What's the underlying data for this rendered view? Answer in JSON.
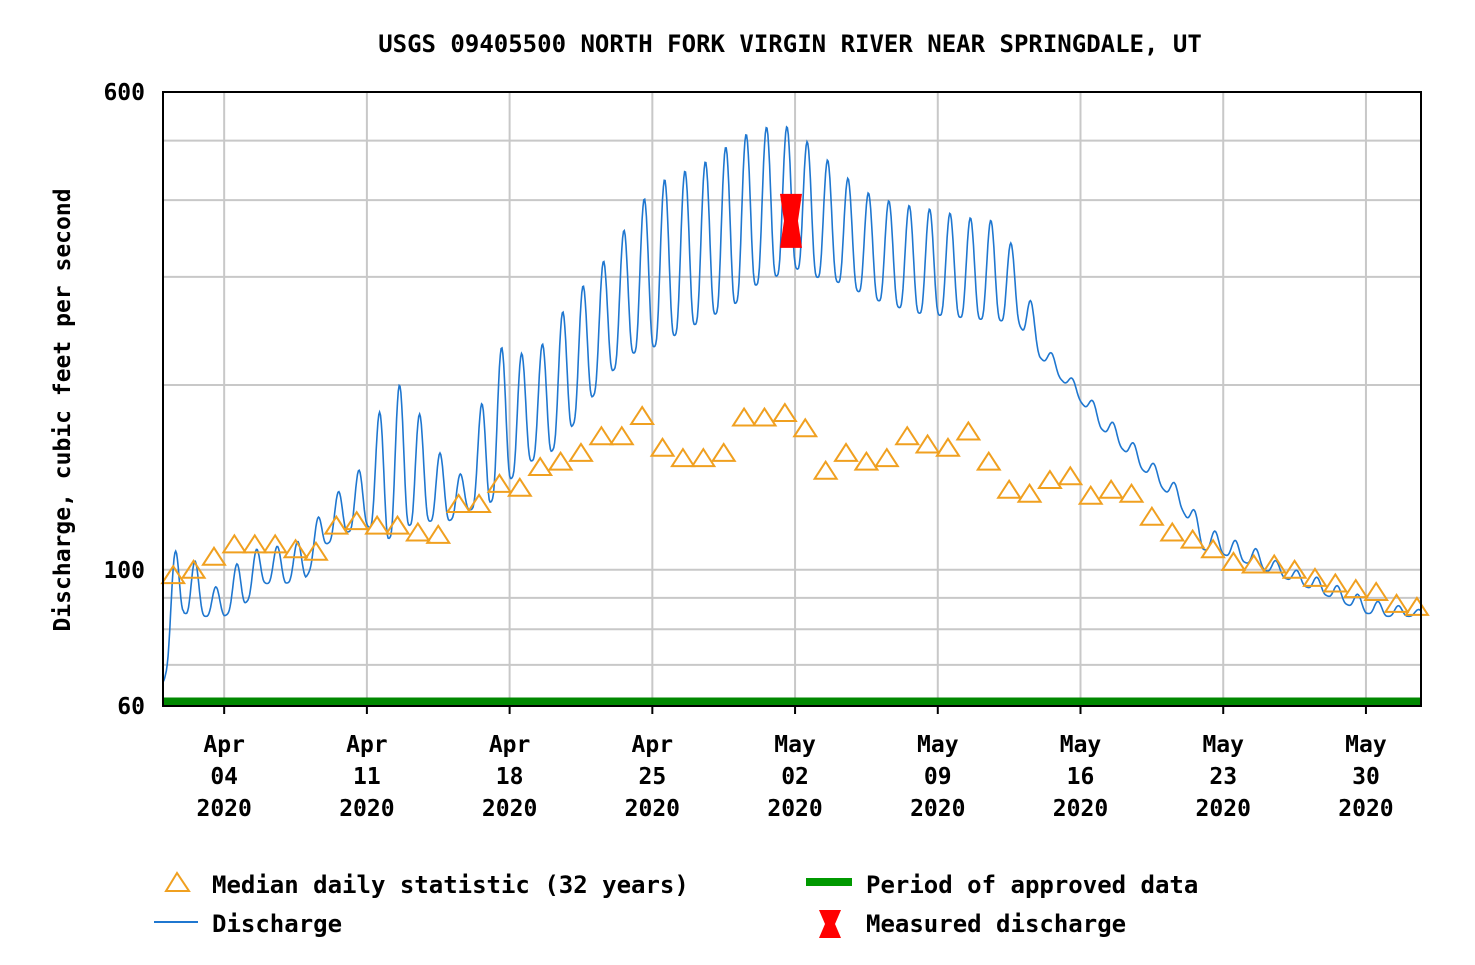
{
  "chart_data": {
    "type": "line",
    "title": "USGS 09405500 NORTH FORK VIRGIN RIVER NEAR SPRINGDALE, UT",
    "ylabel": "Discharge, cubic feet per second",
    "xlabel": "",
    "yscale": "log",
    "ylim": [
      60,
      600
    ],
    "xlim_days": [
      0,
      61.7
    ],
    "y_tick_labels": [
      {
        "value": 600,
        "label": "600"
      },
      {
        "value": 100,
        "label": "100"
      },
      {
        "value": 60,
        "label": "60"
      }
    ],
    "y_gridlines": [
      70,
      80,
      90,
      100,
      200,
      300,
      400,
      500,
      600
    ],
    "x_tick_labels": [
      {
        "day": 3,
        "month": "Apr",
        "date": "04",
        "year": "2020"
      },
      {
        "day": 10,
        "month": "Apr",
        "date": "11",
        "year": "2020"
      },
      {
        "day": 17,
        "month": "Apr",
        "date": "18",
        "year": "2020"
      },
      {
        "day": 24,
        "month": "Apr",
        "date": "25",
        "year": "2020"
      },
      {
        "day": 31,
        "month": "May",
        "date": "02",
        "year": "2020"
      },
      {
        "day": 38,
        "month": "May",
        "date": "09",
        "year": "2020"
      },
      {
        "day": 45,
        "month": "May",
        "date": "16",
        "year": "2020"
      },
      {
        "day": 52,
        "month": "May",
        "date": "23",
        "year": "2020"
      },
      {
        "day": 59,
        "month": "May",
        "date": "30",
        "year": "2020"
      }
    ],
    "series": [
      {
        "name": "Discharge",
        "type": "line",
        "color": "#1f77d0",
        "daily_points": [
          {
            "day": 0,
            "low": 65,
            "high": 95
          },
          {
            "day": 1,
            "low": 85,
            "high": 115
          },
          {
            "day": 2,
            "low": 84,
            "high": 95
          },
          {
            "day": 3,
            "low": 84,
            "high": 93
          },
          {
            "day": 4,
            "low": 88,
            "high": 108
          },
          {
            "day": 5,
            "low": 95,
            "high": 108
          },
          {
            "day": 6,
            "low": 95,
            "high": 110
          },
          {
            "day": 7,
            "low": 97,
            "high": 112
          },
          {
            "day": 8,
            "low": 110,
            "high": 128
          },
          {
            "day": 9,
            "low": 115,
            "high": 138
          },
          {
            "day": 10,
            "low": 118,
            "high": 150
          },
          {
            "day": 11,
            "low": 112,
            "high": 200
          },
          {
            "day": 12,
            "low": 118,
            "high": 200
          },
          {
            "day": 13,
            "low": 120,
            "high": 165
          },
          {
            "day": 14,
            "low": 120,
            "high": 148
          },
          {
            "day": 15,
            "low": 125,
            "high": 140
          },
          {
            "day": 16,
            "low": 128,
            "high": 215
          },
          {
            "day": 17,
            "low": 140,
            "high": 240
          },
          {
            "day": 18,
            "low": 150,
            "high": 215
          },
          {
            "day": 19,
            "low": 155,
            "high": 245
          },
          {
            "day": 20,
            "low": 170,
            "high": 275
          },
          {
            "day": 21,
            "low": 190,
            "high": 300
          },
          {
            "day": 22,
            "low": 210,
            "high": 330
          },
          {
            "day": 23,
            "low": 225,
            "high": 375
          },
          {
            "day": 24,
            "low": 230,
            "high": 420
          },
          {
            "day": 25,
            "low": 240,
            "high": 440
          },
          {
            "day": 26,
            "low": 250,
            "high": 450
          },
          {
            "day": 27,
            "low": 260,
            "high": 470
          },
          {
            "day": 28,
            "low": 270,
            "high": 500
          },
          {
            "day": 29,
            "low": 290,
            "high": 520
          },
          {
            "day": 30,
            "low": 300,
            "high": 530
          },
          {
            "day": 31,
            "low": 310,
            "high": 525
          },
          {
            "day": 32,
            "low": 300,
            "high": 480
          },
          {
            "day": 33,
            "low": 295,
            "high": 455
          },
          {
            "day": 34,
            "low": 285,
            "high": 420
          },
          {
            "day": 35,
            "low": 275,
            "high": 405
          },
          {
            "day": 36,
            "low": 268,
            "high": 395
          },
          {
            "day": 37,
            "low": 262,
            "high": 390
          },
          {
            "day": 38,
            "low": 260,
            "high": 385
          },
          {
            "day": 39,
            "low": 258,
            "high": 378
          },
          {
            "day": 40,
            "low": 256,
            "high": 372
          },
          {
            "day": 41,
            "low": 255,
            "high": 370
          },
          {
            "day": 42,
            "low": 250,
            "high": 320
          },
          {
            "day": 43,
            "low": 222,
            "high": 240
          },
          {
            "day": 44,
            "low": 205,
            "high": 215
          },
          {
            "day": 45,
            "low": 188,
            "high": 198
          },
          {
            "day": 46,
            "low": 170,
            "high": 182
          },
          {
            "day": 47,
            "low": 158,
            "high": 168
          },
          {
            "day": 48,
            "low": 146,
            "high": 156
          },
          {
            "day": 49,
            "low": 136,
            "high": 144
          },
          {
            "day": 50,
            "low": 125,
            "high": 135
          },
          {
            "day": 51,
            "low": 108,
            "high": 118
          },
          {
            "day": 52,
            "low": 106,
            "high": 114
          },
          {
            "day": 53,
            "low": 103,
            "high": 110
          },
          {
            "day": 54,
            "low": 100,
            "high": 107
          },
          {
            "day": 55,
            "low": 97,
            "high": 101
          },
          {
            "day": 56,
            "low": 94,
            "high": 99
          },
          {
            "day": 57,
            "low": 91,
            "high": 96
          },
          {
            "day": 58,
            "low": 88,
            "high": 93
          },
          {
            "day": 59,
            "low": 85,
            "high": 90
          },
          {
            "day": 60,
            "low": 84,
            "high": 88
          },
          {
            "day": 61,
            "low": 84,
            "high": 87
          },
          {
            "day": 61.7,
            "low": 84,
            "high": 86
          }
        ]
      },
      {
        "name": "Median daily statistic (32 years)",
        "type": "marker",
        "marker": "triangle-open",
        "color": "#f0a020",
        "x": [
          0,
          1,
          2,
          3,
          4,
          5,
          6,
          7,
          8,
          9,
          10,
          11,
          12,
          13,
          14,
          15,
          16,
          17,
          18,
          19,
          20,
          21,
          22,
          23,
          24,
          25,
          26,
          27,
          28,
          29,
          30,
          31,
          32,
          33,
          34,
          35,
          36,
          37,
          38,
          39,
          40,
          41,
          42,
          43,
          44,
          45,
          46,
          47,
          48,
          49,
          50,
          51,
          52,
          53,
          54,
          55,
          56,
          57,
          58,
          59,
          60,
          61
        ],
        "values": [
          98,
          100,
          105,
          110,
          110,
          110,
          108,
          107,
          118,
          120,
          118,
          118,
          115,
          114,
          128,
          128,
          138,
          136,
          147,
          150,
          155,
          165,
          165,
          178,
          158,
          152,
          152,
          155,
          177,
          177,
          180,
          170,
          145,
          155,
          150,
          152,
          165,
          160,
          158,
          168,
          150,
          135,
          133,
          140,
          142,
          132,
          135,
          133,
          122,
          115,
          112,
          108,
          103,
          102,
          102,
          100,
          97,
          95,
          93,
          92,
          88,
          87
        ]
      },
      {
        "name": "Measured discharge",
        "type": "marker",
        "marker": "bowtie",
        "color": "#ff0000",
        "x": [
          30.8
        ],
        "values": [
          370
        ]
      },
      {
        "name": "Period of approved data",
        "type": "bar",
        "color": "#008800",
        "x_range": [
          0,
          61.7
        ]
      }
    ],
    "legend": {
      "placement": "bottom",
      "items": [
        {
          "key": "median",
          "label": "Median daily statistic (32 years)"
        },
        {
          "key": "approved",
          "label": "Period of approved data"
        },
        {
          "key": "discharge",
          "label": "Discharge"
        },
        {
          "key": "measured",
          "label": "Measured discharge"
        }
      ]
    }
  }
}
